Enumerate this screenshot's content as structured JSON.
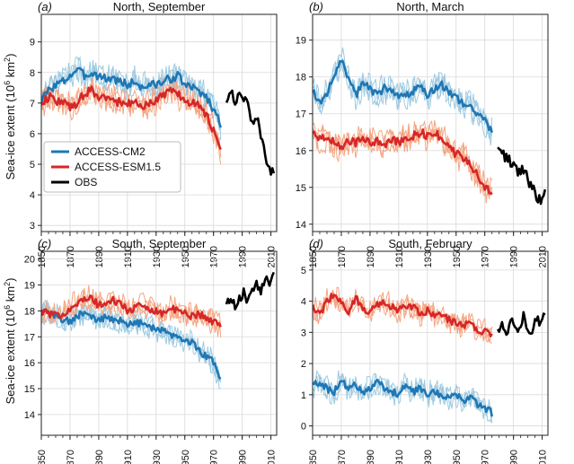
{
  "figure": {
    "ylabel_prefix": "Sea-ice extent (10",
    "ylabel_sup": "6",
    "ylabel_suffix": " km",
    "ylabel_sup2": "2",
    "ylabel_close": ")"
  },
  "legend": {
    "items": [
      {
        "label": "ACCESS-CM2",
        "color": "#1f77b4"
      },
      {
        "label": "ACCESS-ESM1.5",
        "color": "#d62728"
      },
      {
        "label": "OBS",
        "color": "#000000"
      }
    ]
  },
  "chart_data": [
    {
      "type": "line",
      "panel": "a",
      "title": "North, September",
      "xlim": [
        1850,
        2014
      ],
      "ylim": [
        2.8,
        9.9
      ],
      "xticks": [
        1850,
        1870,
        1890,
        1910,
        1930,
        1950,
        1970,
        1990,
        2010
      ],
      "yticks": [
        3,
        4,
        5,
        6,
        7,
        8,
        9
      ],
      "grid": true,
      "legend_position": "bottom-left",
      "series": [
        {
          "name": "ACCESS-CM2",
          "color": "#1f77b4",
          "role": "mean",
          "x_start": 1850,
          "step": 5,
          "values": [
            7.1,
            7.4,
            7.6,
            7.7,
            7.9,
            8.1,
            7.9,
            8.0,
            7.9,
            7.8,
            7.8,
            7.7,
            7.6,
            7.7,
            7.5,
            7.6,
            7.6,
            7.7,
            7.8,
            7.9,
            7.6,
            7.5,
            7.4,
            7.2,
            6.8,
            6.3
          ]
        },
        {
          "name": "ACCESS-ESM1.5",
          "color": "#d62728",
          "role": "mean",
          "x_start": 1850,
          "step": 5,
          "values": [
            7.0,
            7.2,
            7.1,
            7.0,
            6.9,
            7.0,
            7.3,
            7.4,
            7.2,
            7.2,
            7.1,
            7.0,
            7.0,
            7.0,
            6.8,
            7.0,
            7.1,
            7.3,
            7.4,
            7.3,
            7.1,
            7.0,
            6.9,
            6.6,
            6.1,
            5.4
          ]
        },
        {
          "name": "OBS",
          "color": "#000000",
          "role": "obs",
          "x_start": 1979,
          "step": 3,
          "values": [
            7.1,
            7.5,
            7.0,
            7.4,
            7.2,
            6.9,
            6.3,
            6.6,
            5.8,
            5.3,
            4.9,
            4.6
          ]
        }
      ]
    },
    {
      "type": "line",
      "panel": "b",
      "title": "North, March",
      "xlim": [
        1850,
        2014
      ],
      "ylim": [
        13.8,
        19.7
      ],
      "xticks": [
        1850,
        1870,
        1890,
        1910,
        1930,
        1950,
        1970,
        1990,
        2010
      ],
      "yticks": [
        14,
        15,
        16,
        17,
        18,
        19
      ],
      "grid": true,
      "series": [
        {
          "name": "ACCESS-CM2",
          "color": "#1f77b4",
          "role": "mean",
          "x_start": 1850,
          "step": 5,
          "values": [
            17.6,
            17.3,
            17.6,
            17.9,
            18.5,
            18.0,
            17.5,
            17.8,
            17.7,
            17.5,
            17.7,
            17.6,
            17.4,
            17.5,
            17.6,
            17.7,
            17.5,
            17.7,
            17.8,
            17.6,
            17.4,
            17.3,
            17.2,
            17.0,
            16.8,
            16.5
          ]
        },
        {
          "name": "ACCESS-ESM1.5",
          "color": "#d62728",
          "role": "mean",
          "x_start": 1850,
          "step": 5,
          "values": [
            16.5,
            16.3,
            16.4,
            16.2,
            16.1,
            16.3,
            16.2,
            16.4,
            16.2,
            16.3,
            16.1,
            16.3,
            16.2,
            16.3,
            16.4,
            16.5,
            16.4,
            16.5,
            16.3,
            16.1,
            15.9,
            15.8,
            15.6,
            15.3,
            15.0,
            14.9
          ]
        },
        {
          "name": "OBS",
          "color": "#000000",
          "role": "obs",
          "x_start": 1979,
          "step": 3,
          "values": [
            16.1,
            15.9,
            15.8,
            15.7,
            15.6,
            15.4,
            15.5,
            15.2,
            15.0,
            14.8,
            14.6,
            14.8
          ]
        }
      ]
    },
    {
      "type": "line",
      "panel": "c",
      "title": "South, September",
      "xlim": [
        1850,
        2014
      ],
      "ylim": [
        13.2,
        20.3
      ],
      "xticks": [
        1850,
        1870,
        1890,
        1910,
        1930,
        1950,
        1970,
        1990,
        2010
      ],
      "yticks": [
        14,
        15,
        16,
        17,
        18,
        19,
        20
      ],
      "grid": true,
      "series": [
        {
          "name": "ACCESS-CM2",
          "color": "#1f77b4",
          "role": "mean",
          "x_start": 1850,
          "step": 5,
          "values": [
            18.0,
            17.9,
            17.8,
            17.7,
            17.6,
            17.8,
            17.9,
            17.8,
            17.6,
            17.8,
            17.7,
            17.6,
            17.5,
            17.6,
            17.5,
            17.4,
            17.3,
            17.2,
            17.1,
            17.0,
            16.9,
            16.8,
            16.5,
            16.2,
            16.0,
            15.3
          ]
        },
        {
          "name": "ACCESS-ESM1.5",
          "color": "#d62728",
          "role": "mean",
          "x_start": 1850,
          "step": 5,
          "values": [
            18.0,
            17.9,
            17.8,
            17.9,
            18.1,
            18.3,
            18.4,
            18.5,
            18.2,
            18.3,
            18.4,
            18.3,
            18.0,
            18.1,
            18.2,
            18.1,
            18.0,
            17.9,
            18.1,
            18.0,
            17.9,
            17.8,
            17.9,
            17.7,
            17.6,
            17.4
          ]
        },
        {
          "name": "OBS",
          "color": "#000000",
          "role": "obs",
          "x_start": 1979,
          "step": 3,
          "values": [
            18.2,
            18.6,
            18.1,
            18.5,
            18.7,
            18.3,
            18.9,
            19.0,
            18.8,
            19.2,
            19.1,
            19.6
          ]
        }
      ]
    },
    {
      "type": "line",
      "panel": "d",
      "title": "South, February",
      "xlim": [
        1850,
        2014
      ],
      "ylim": [
        -0.3,
        5.6
      ],
      "xticks": [
        1850,
        1870,
        1890,
        1910,
        1930,
        1950,
        1970,
        1990,
        2010
      ],
      "yticks": [
        0,
        1,
        2,
        3,
        4,
        5
      ],
      "grid": true,
      "series": [
        {
          "name": "ACCESS-CM2",
          "color": "#1f77b4",
          "role": "mean",
          "x_start": 1850,
          "step": 5,
          "values": [
            1.3,
            1.4,
            1.2,
            1.1,
            1.5,
            1.2,
            1.3,
            1.1,
            1.2,
            1.4,
            1.2,
            1.1,
            1.0,
            1.3,
            1.1,
            1.2,
            1.0,
            1.1,
            1.0,
            0.9,
            1.0,
            0.8,
            0.9,
            0.7,
            0.6,
            0.4
          ]
        },
        {
          "name": "ACCESS-ESM1.5",
          "color": "#d62728",
          "role": "mean",
          "x_start": 1850,
          "step": 5,
          "values": [
            3.8,
            3.6,
            4.0,
            4.2,
            3.9,
            3.7,
            4.1,
            3.8,
            3.6,
            3.9,
            4.0,
            3.8,
            3.7,
            3.9,
            3.8,
            3.6,
            3.7,
            3.5,
            3.6,
            3.4,
            3.3,
            3.2,
            3.3,
            3.1,
            3.0,
            2.9
          ]
        },
        {
          "name": "OBS",
          "color": "#000000",
          "role": "obs",
          "x_start": 1979,
          "step": 3,
          "values": [
            3.0,
            3.3,
            2.8,
            3.4,
            3.2,
            3.0,
            3.6,
            3.1,
            2.9,
            3.5,
            3.2,
            3.6
          ]
        }
      ]
    }
  ]
}
